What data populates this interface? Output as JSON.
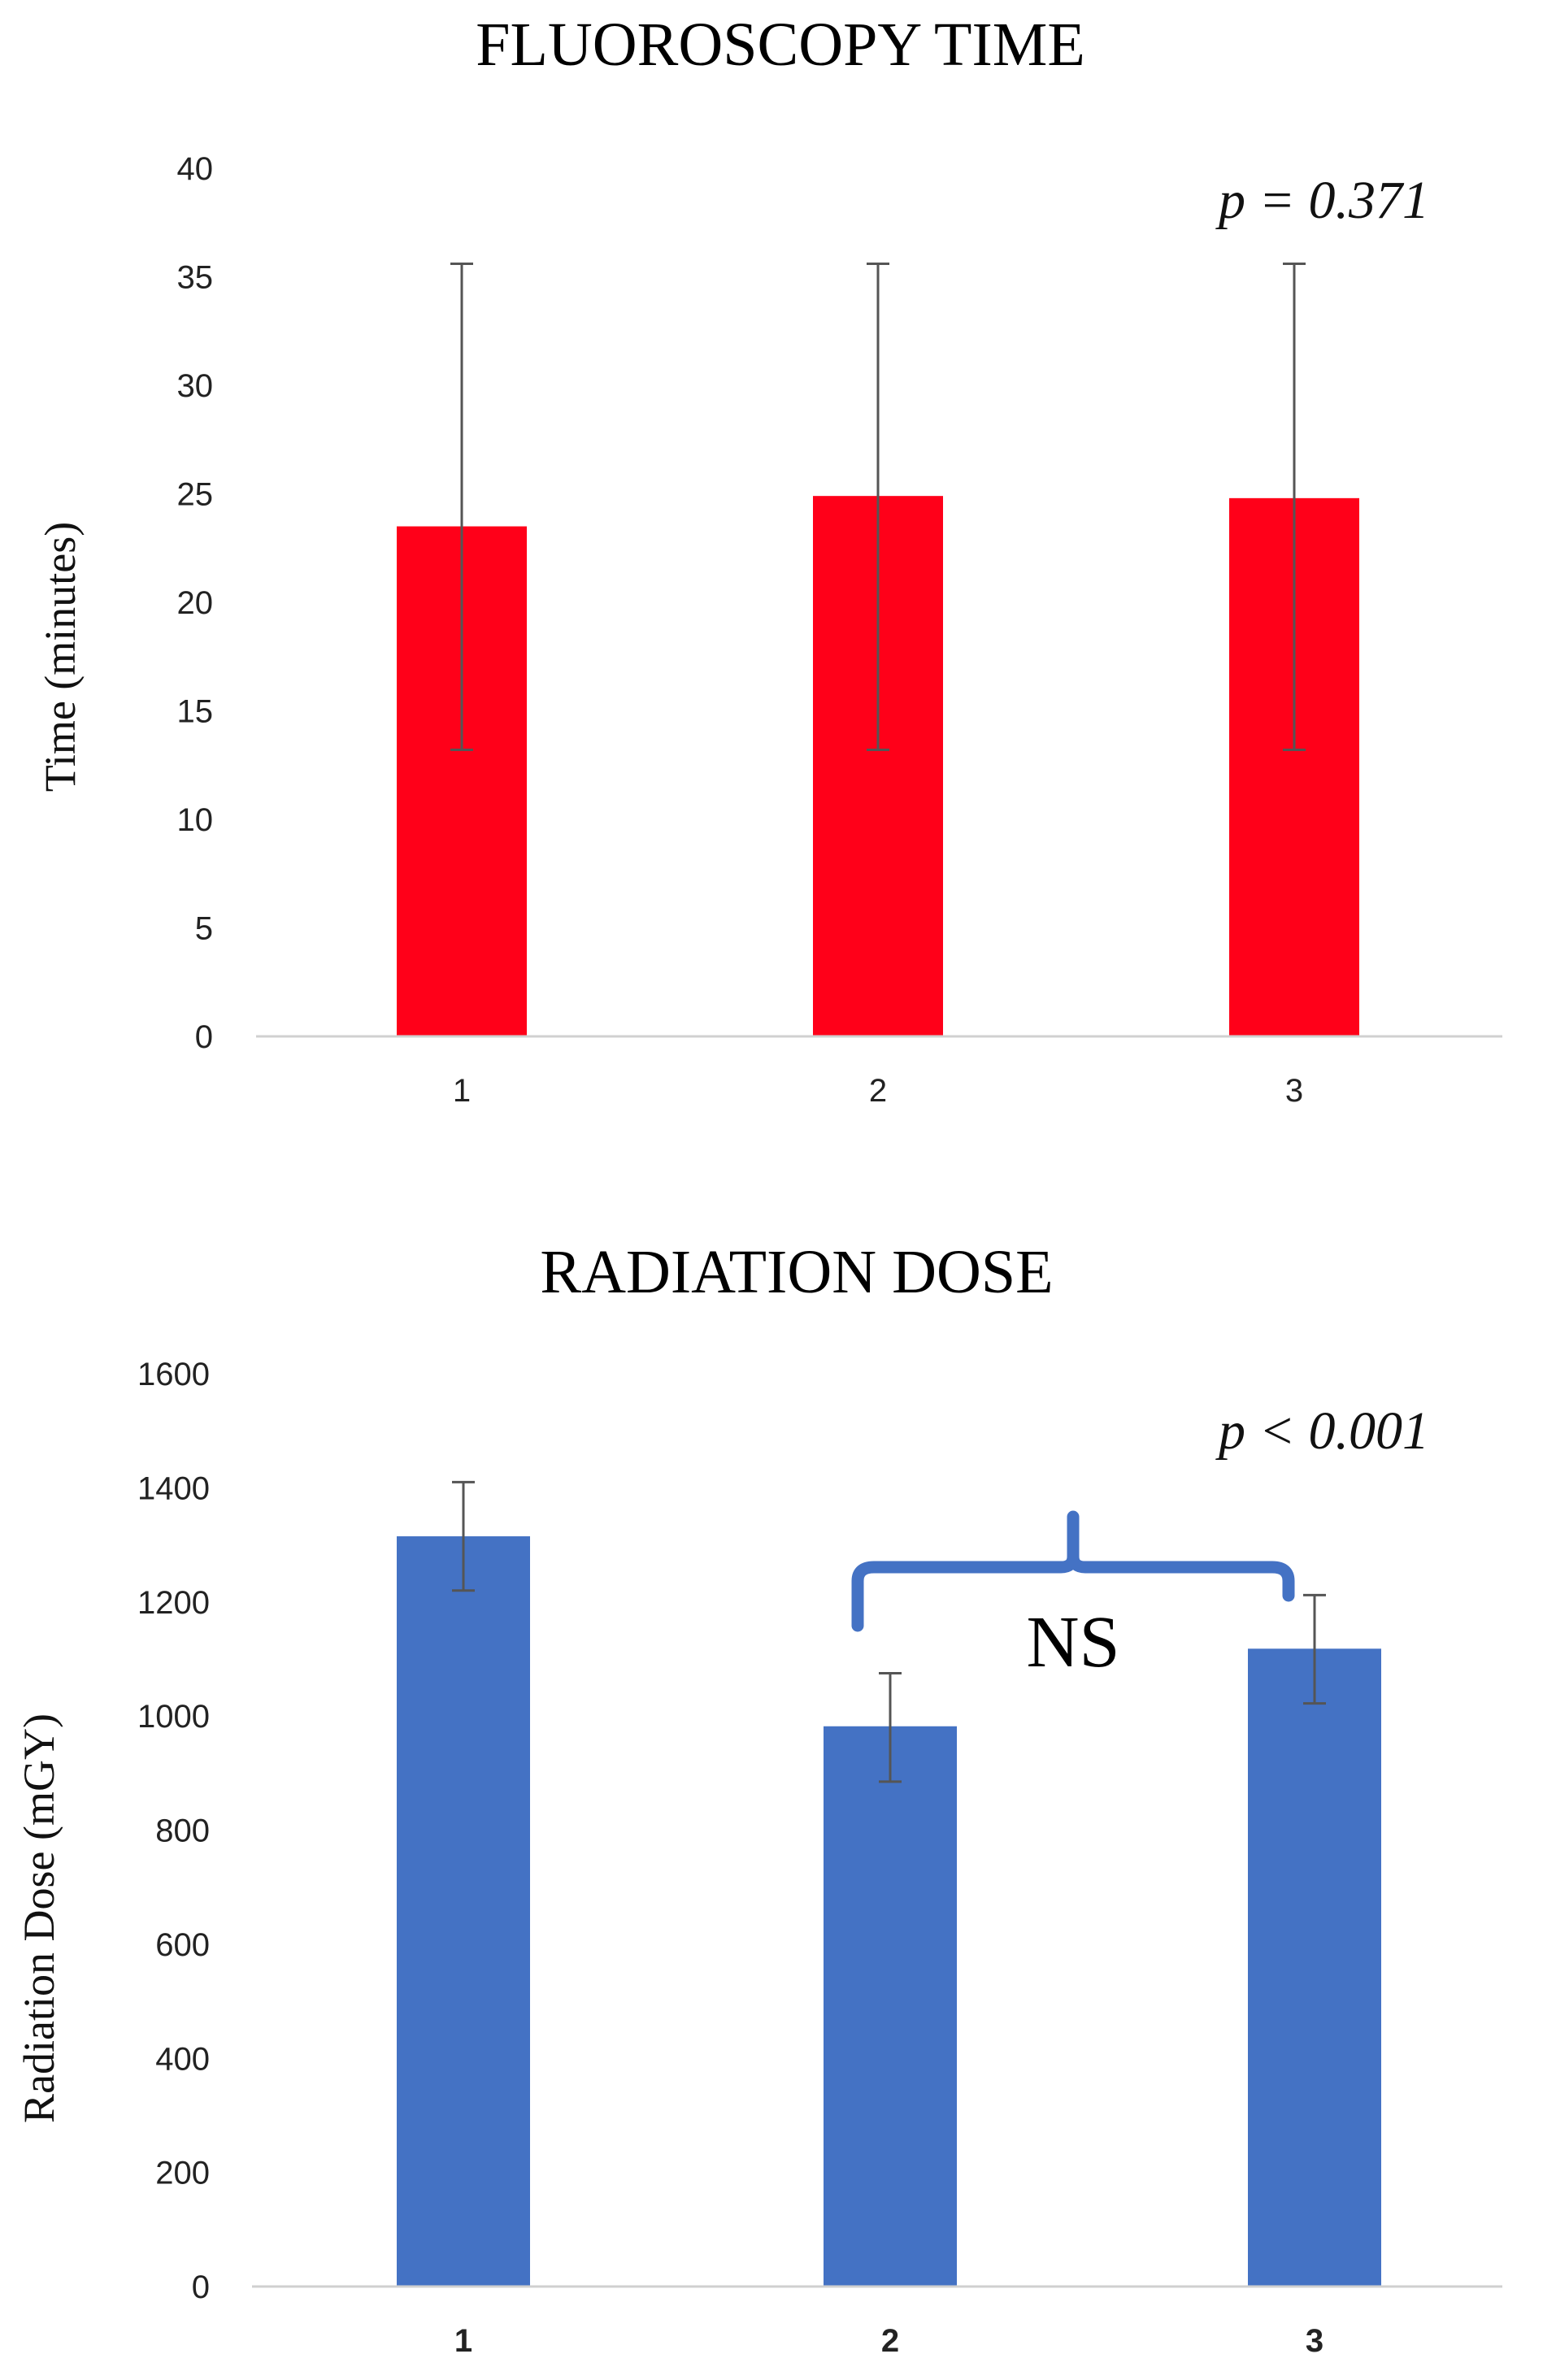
{
  "chart_data": [
    {
      "type": "bar",
      "title": "FLUOROSCOPY TIME",
      "xlabel": "",
      "ylabel": "Time (minutes)",
      "categories": [
        "1",
        "2",
        "3"
      ],
      "values": [
        23.5,
        24.9,
        24.8
      ],
      "error_low": [
        13.2,
        13.2,
        13.2
      ],
      "error_high": [
        35.6,
        35.6,
        35.6
      ],
      "ylim": [
        0,
        40
      ],
      "yticks": [
        0,
        5,
        10,
        15,
        20,
        25,
        30,
        35,
        40
      ],
      "bar_color": "#ff0019",
      "annotation": "p = 0.371",
      "grid": false
    },
    {
      "type": "bar",
      "title": "RADIATION DOSE",
      "xlabel": "",
      "ylabel": "Radiation Dose (mGY)",
      "categories": [
        "1",
        "2",
        "3"
      ],
      "values": [
        1315,
        982,
        1118
      ],
      "error_low": [
        1220,
        885,
        1022
      ],
      "error_high": [
        1410,
        1075,
        1212
      ],
      "ylim": [
        0,
        1600
      ],
      "yticks": [
        0,
        200,
        400,
        600,
        800,
        1000,
        1200,
        1400,
        1600
      ],
      "bar_color": "#4472c4",
      "annotation": "p < 0.001",
      "bracket": {
        "from": "2",
        "to": "3",
        "label": "NS",
        "color": "#4472c4"
      },
      "grid": false
    }
  ]
}
